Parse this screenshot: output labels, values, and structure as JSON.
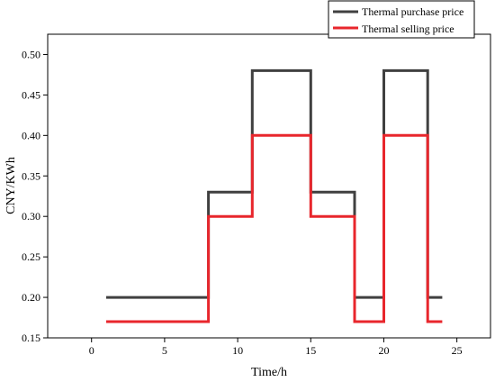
{
  "chart_data": {
    "type": "line",
    "step": true,
    "xlabel": "Time/h",
    "ylabel": "CNY/KWh",
    "xlim": [
      -3,
      27.3
    ],
    "ylim": [
      0.15,
      0.525
    ],
    "xticks": [
      0,
      5,
      10,
      15,
      20,
      25
    ],
    "yticks": [
      0.15,
      0.2,
      0.25,
      0.3,
      0.35,
      0.4,
      0.45,
      0.5
    ],
    "ytick_labels": [
      "0.15",
      "0.20",
      "0.25",
      "0.30",
      "0.35",
      "0.40",
      "0.45",
      "0.50"
    ],
    "grid": false,
    "legend_position": "top-right",
    "series": [
      {
        "name": "Thermal purchase price",
        "color": "#404040",
        "x": [
          1,
          8,
          8,
          11,
          11,
          15,
          15,
          18,
          18,
          20,
          20,
          23,
          23,
          24
        ],
        "y": [
          0.2,
          0.2,
          0.33,
          0.33,
          0.48,
          0.48,
          0.33,
          0.33,
          0.2,
          0.2,
          0.48,
          0.48,
          0.2,
          0.2
        ]
      },
      {
        "name": "Thermal selling price",
        "color": "#e8262c",
        "x": [
          1,
          8,
          8,
          11,
          11,
          15,
          15,
          18,
          18,
          20,
          20,
          23,
          23,
          24
        ],
        "y": [
          0.17,
          0.17,
          0.3,
          0.3,
          0.4,
          0.4,
          0.3,
          0.3,
          0.17,
          0.17,
          0.4,
          0.4,
          0.17,
          0.17
        ]
      }
    ]
  }
}
